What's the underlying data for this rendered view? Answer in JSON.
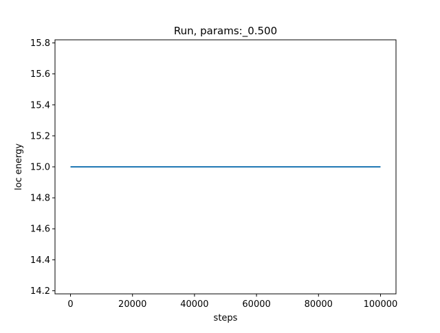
{
  "chart_data": {
    "type": "line",
    "title": "Run, params:_0.500",
    "xlabel": "steps",
    "ylabel": "loc energy",
    "xlim": [
      -5000,
      105000
    ],
    "ylim": [
      14.18,
      15.82
    ],
    "x_ticks": [
      0,
      20000,
      40000,
      60000,
      80000,
      100000
    ],
    "y_ticks": [
      14.2,
      14.4,
      14.6,
      14.8,
      15.0,
      15.2,
      15.4,
      15.6,
      15.8
    ],
    "x_tick_labels": [
      "0",
      "20000",
      "40000",
      "60000",
      "80000",
      "100000"
    ],
    "y_tick_labels": [
      "14.2",
      "14.4",
      "14.6",
      "14.8",
      "15.0",
      "15.2",
      "15.4",
      "15.6",
      "15.8"
    ],
    "grid": false,
    "series": [
      {
        "color": "#1f77b4",
        "x": [
          0,
          100000
        ],
        "y": [
          15.0,
          15.0
        ]
      }
    ]
  }
}
